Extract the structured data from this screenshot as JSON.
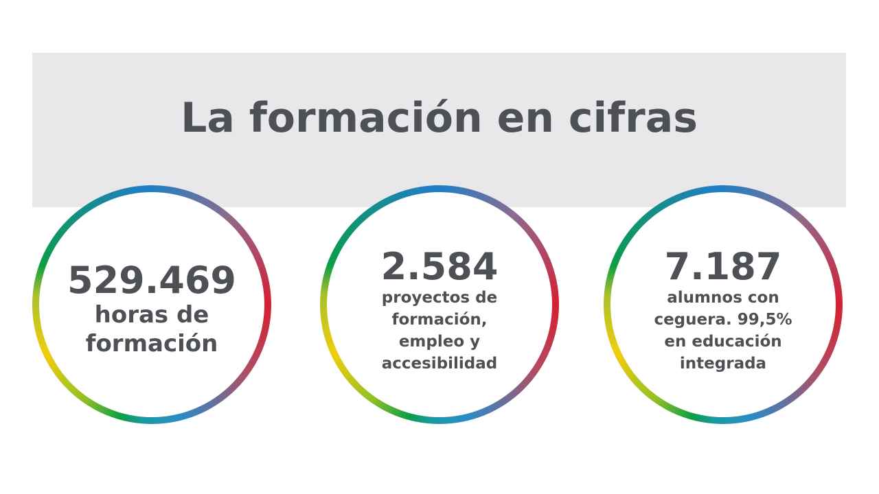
{
  "title": "La formación en cifras",
  "stats": [
    {
      "number": "529.469",
      "text": "horas de\nformación"
    },
    {
      "number": "2.584",
      "text": "proyectos de\nformación,\nempleo y\naccesibilidad"
    },
    {
      "number": "7.187",
      "text": "alumnos con\nceguera. 99,5%\nen educación\nintegrada"
    }
  ],
  "colors": {
    "banner": "#e8e8ea",
    "text": "#4d5055",
    "ring_blue": "#1f7fc4",
    "ring_red": "#d52131",
    "ring_green": "#0a9d48",
    "ring_yellow": "#f2cd0c"
  }
}
